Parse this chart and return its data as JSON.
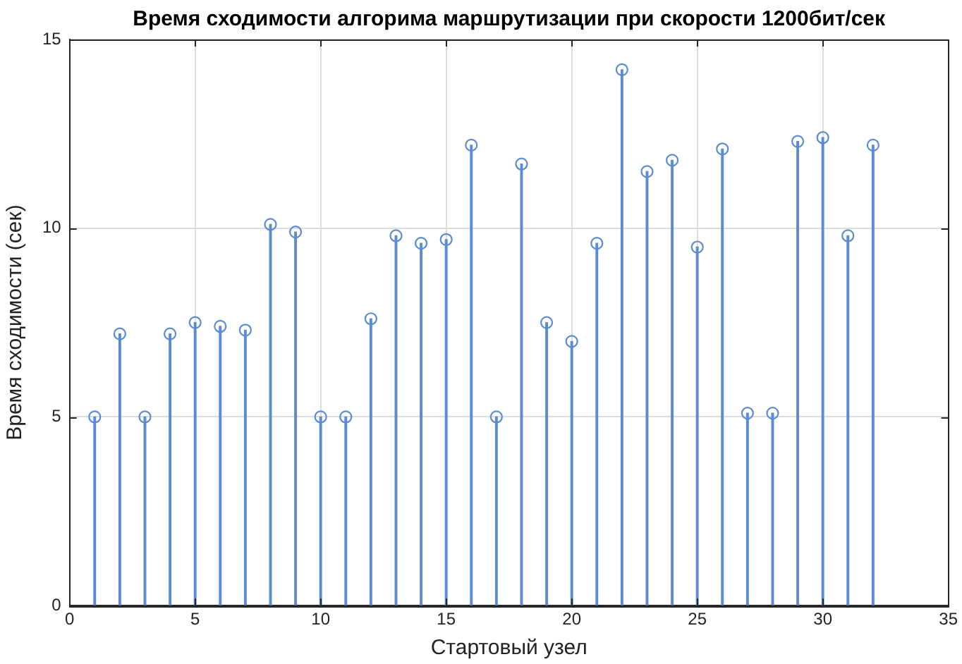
{
  "chart_data": {
    "type": "lollipop",
    "title": "Время сходимости алгорима маршрутизации при скорости 1200бит/сек",
    "xlabel": "Стартовый узел",
    "ylabel": "Время сходимости (сек)",
    "x": [
      1,
      2,
      3,
      4,
      5,
      6,
      7,
      8,
      9,
      10,
      11,
      12,
      13,
      14,
      15,
      16,
      17,
      18,
      19,
      20,
      21,
      22,
      23,
      24,
      25,
      26,
      27,
      28,
      29,
      30,
      31,
      32
    ],
    "values": [
      5.0,
      7.2,
      5.0,
      7.2,
      7.5,
      7.4,
      7.3,
      10.1,
      9.9,
      5.0,
      5.0,
      7.6,
      9.8,
      9.6,
      9.7,
      12.2,
      5.0,
      11.7,
      7.5,
      7.0,
      9.6,
      14.2,
      11.5,
      11.8,
      9.5,
      12.1,
      5.1,
      5.1,
      12.3,
      12.4,
      9.8,
      12.2
    ],
    "color": "#5b8bd0",
    "xlim": [
      0,
      35
    ],
    "xticks": [
      0,
      5,
      10,
      15,
      20,
      25,
      30,
      35
    ],
    "ylim": [
      0,
      15
    ],
    "yticks": [
      0,
      5,
      10,
      15
    ],
    "grid": true,
    "marker": "circle"
  }
}
